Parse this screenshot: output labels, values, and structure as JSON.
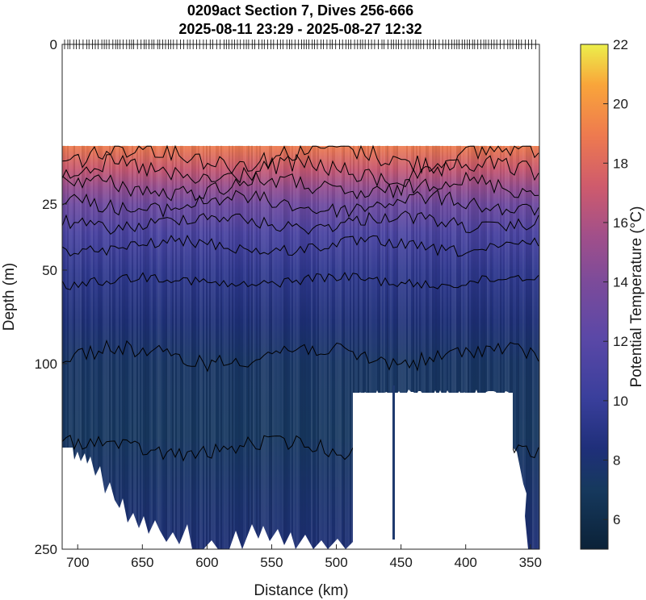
{
  "chart_data": {
    "type": "heatmap",
    "title": "0209act Section 7, Dives 256-666",
    "subtitle": "2025-08-11 23:29 - 2025-08-27 12:32",
    "xlabel": "Distance (km)",
    "ylabel": "Depth (m)",
    "colorbar_label": "Potential Temperature (°C)",
    "x_range": [
      712,
      343
    ],
    "x_reversed": true,
    "x_ticks": [
      700,
      650,
      600,
      550,
      500,
      450,
      400,
      350
    ],
    "y_scale": "sqrt",
    "y_range": [
      0,
      250
    ],
    "y_reversed": true,
    "y_ticks": [
      0,
      25,
      50,
      100,
      250
    ],
    "colorbar_range": [
      5,
      22
    ],
    "colorbar_ticks": [
      6,
      8,
      10,
      12,
      14,
      16,
      18,
      20,
      22
    ],
    "colormap": "thermal",
    "colors": {
      "warm_surface": "#f39a3e",
      "mid": "#7c4b9a",
      "deep": "#1e2e72",
      "coldest": "#0b2238",
      "contour": "#000000"
    },
    "data_coverage": {
      "shallowest_data_depth_m": 10,
      "surface_gap": "no data between 0 and ~10 m",
      "data_gap_distance_km": [
        485,
        356
      ],
      "data_gap_top_depth_m": 106
    },
    "temperature_by_depth": [
      {
        "depth": 10,
        "temp": 19.0
      },
      {
        "depth": 15,
        "temp": 17.0
      },
      {
        "depth": 20,
        "temp": 15.0
      },
      {
        "depth": 25,
        "temp": 13.2
      },
      {
        "depth": 35,
        "temp": 11.0
      },
      {
        "depth": 50,
        "temp": 9.5
      },
      {
        "depth": 75,
        "temp": 8.3
      },
      {
        "depth": 100,
        "temp": 7.4
      },
      {
        "depth": 150,
        "temp": 7.2
      },
      {
        "depth": 200,
        "temp": 7.8
      },
      {
        "depth": 250,
        "temp": 8.2
      }
    ],
    "contour_depths_m": [
      12,
      16,
      20,
      25,
      31,
      40,
      55,
      95,
      160
    ],
    "profile_marks": "dense ticks along the top axis at each dive location"
  }
}
